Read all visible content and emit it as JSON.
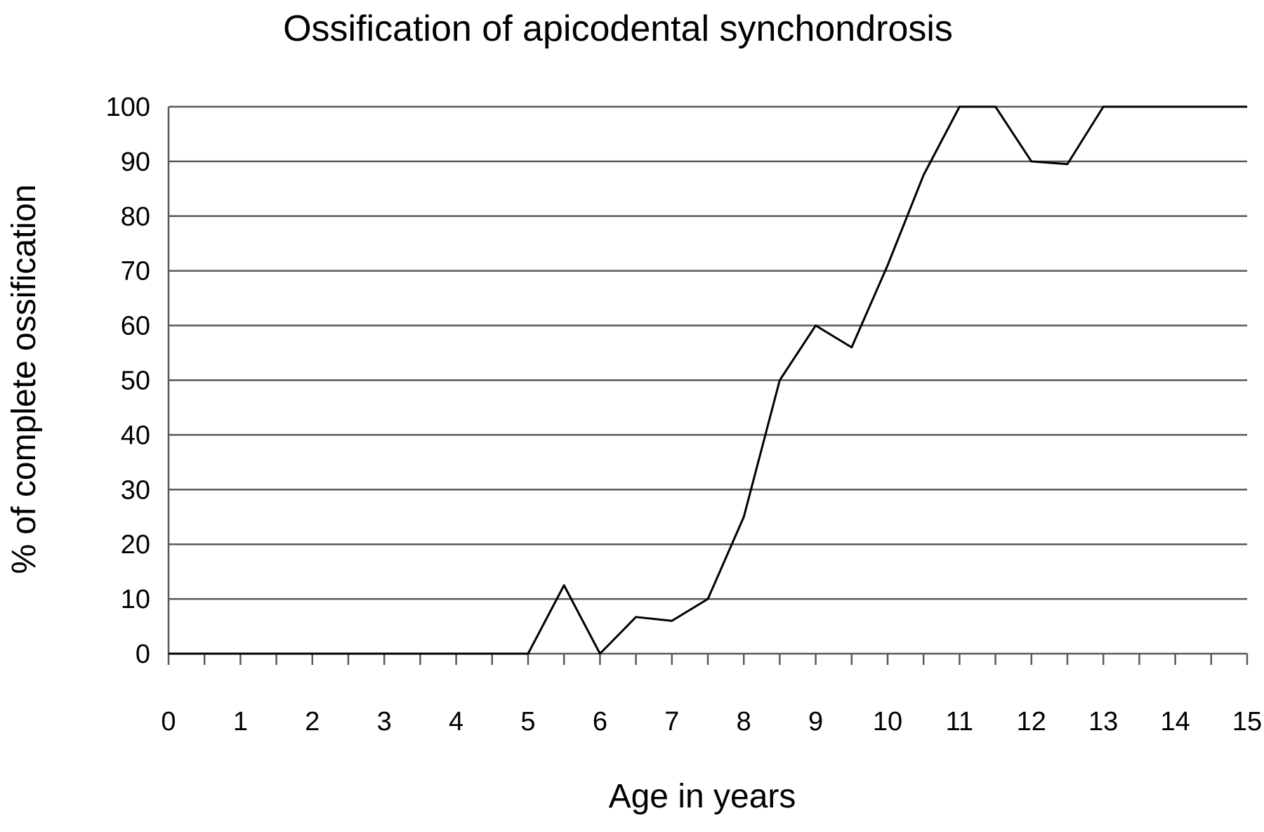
{
  "chart_data": {
    "type": "line",
    "title": "Ossification of apicodental synchondrosis",
    "xlabel": "Age in years",
    "ylabel": "% of complete ossification",
    "xlim": [
      0,
      15
    ],
    "ylim": [
      0,
      100
    ],
    "x_ticks": [
      "0",
      "1",
      "2",
      "3",
      "4",
      "5",
      "6",
      "7",
      "8",
      "9",
      "10",
      "11",
      "12",
      "13",
      "14",
      "15"
    ],
    "y_ticks": [
      "0",
      "10",
      "20",
      "30",
      "40",
      "50",
      "60",
      "70",
      "80",
      "90",
      "100"
    ],
    "grid": true,
    "line_color": "#000000",
    "grid_color": "#595959",
    "series": [
      {
        "x": [
          0,
          0.5,
          1,
          1.5,
          2,
          2.5,
          3,
          3.5,
          4,
          4.5,
          5,
          5.5,
          6,
          6.5,
          7,
          7.5,
          8,
          8.5,
          9,
          9.5,
          10,
          10.5,
          11,
          11.5,
          12,
          12.5,
          13,
          13.5,
          14,
          14.5,
          15
        ],
        "values": [
          0,
          0,
          0,
          0,
          0,
          0,
          0,
          0,
          0,
          0,
          0,
          12.5,
          0,
          6.7,
          6.0,
          10,
          25,
          50,
          60,
          56,
          71,
          87.5,
          100,
          100,
          90,
          89.5,
          100,
          100,
          100,
          100,
          100
        ]
      }
    ]
  }
}
